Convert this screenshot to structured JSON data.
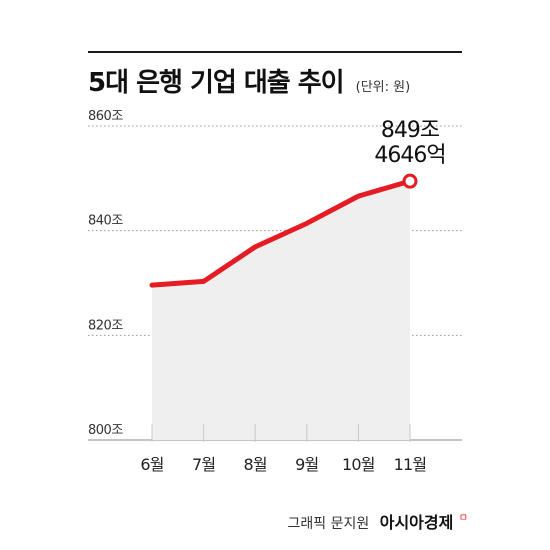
{
  "header": {
    "title": "5대 은행 기업 대출 추이",
    "unit": "(단위: 원)"
  },
  "chart_data": {
    "type": "line",
    "title": "5대 은행 기업 대출 추이",
    "unit_note": "(단위: 원)",
    "categories": [
      "6월",
      "7월",
      "8월",
      "9월",
      "10월",
      "11월"
    ],
    "values": [
      829.6,
      830.3,
      836.9,
      841.4,
      846.6,
      849.46
    ],
    "ylim": [
      800,
      860
    ],
    "yticks": [
      800,
      820,
      840,
      860
    ],
    "ytick_labels": [
      "800조",
      "820조",
      "840조",
      "860조"
    ],
    "annotation": {
      "index": 5,
      "lines": [
        "849조",
        "4646억"
      ]
    },
    "grid": true,
    "legend": "none",
    "colors": {
      "line": "#e51c23",
      "area": "#efefef",
      "grid": "#9a9a9a",
      "tick": "#c8c8c8"
    }
  },
  "footer": {
    "credit": "그래픽 문지원",
    "brand": "아시아경제",
    "brand_mark": "ㅁ"
  }
}
